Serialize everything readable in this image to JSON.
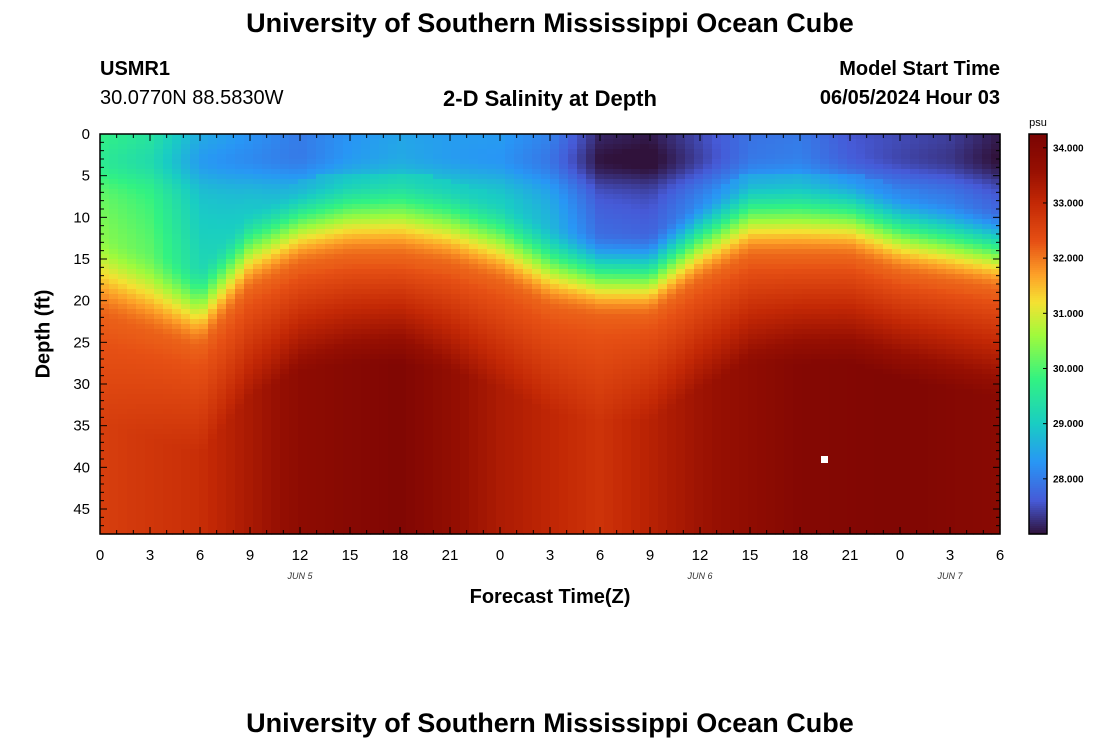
{
  "header": {
    "title": "University of Southern Mississippi Ocean Cube",
    "station": "USMR1",
    "coords": "30.0770N  88.5830W",
    "subtitle": "2-D Salinity at Depth",
    "model_start_label": "Model Start Time",
    "model_start_value": "06/05/2024 Hour 03"
  },
  "footer": {
    "title": "University of Southern Mississippi Ocean Cube"
  },
  "chart_data": {
    "type": "heatmap",
    "title": "2-D Salinity at Depth",
    "xlabel": "Forecast Time(Z)",
    "ylabel": "Depth (ft)",
    "x_tick_labels": [
      "0",
      "3",
      "6",
      "9",
      "12",
      "15",
      "18",
      "21",
      "0",
      "3",
      "6",
      "9",
      "12",
      "15",
      "18",
      "21",
      "0",
      "3",
      "6"
    ],
    "date_labels": [
      {
        "text": "JUN 5",
        "hour": 12
      },
      {
        "text": "JUN 6",
        "hour": 36
      },
      {
        "text": "JUN 7",
        "hour": 51
      }
    ],
    "xlim_hours": [
      0,
      54
    ],
    "y_ticks": [
      0,
      5,
      10,
      15,
      20,
      25,
      30,
      35,
      40,
      45
    ],
    "ylim": [
      0,
      48
    ],
    "colorbar": {
      "unit": "psu",
      "ticks": [
        "34.000",
        "33.000",
        "32.000",
        "31.000",
        "30.000",
        "29.000",
        "28.000"
      ],
      "range": [
        27.0,
        34.25
      ]
    },
    "thermocline_depth_ft": [
      {
        "hour": 0,
        "depth": 17
      },
      {
        "hour": 3,
        "depth": 19
      },
      {
        "hour": 6,
        "depth": 21
      },
      {
        "hour": 9,
        "depth": 14
      },
      {
        "hour": 12,
        "depth": 11
      },
      {
        "hour": 15,
        "depth": 10
      },
      {
        "hour": 18,
        "depth": 10
      },
      {
        "hour": 21,
        "depth": 11
      },
      {
        "hour": 24,
        "depth": 13
      },
      {
        "hour": 27,
        "depth": 16
      },
      {
        "hour": 30,
        "depth": 17
      },
      {
        "hour": 33,
        "depth": 17
      },
      {
        "hour": 36,
        "depth": 13
      },
      {
        "hour": 39,
        "depth": 10
      },
      {
        "hour": 42,
        "depth": 10
      },
      {
        "hour": 45,
        "depth": 10
      },
      {
        "hour": 48,
        "depth": 12
      },
      {
        "hour": 51,
        "depth": 13
      },
      {
        "hour": 54,
        "depth": 14
      }
    ],
    "surface_salinity_psu": [
      {
        "hour": 0,
        "value": 29.8
      },
      {
        "hour": 3,
        "value": 29.5
      },
      {
        "hour": 6,
        "value": 28.6
      },
      {
        "hour": 9,
        "value": 28.3
      },
      {
        "hour": 12,
        "value": 28.0
      },
      {
        "hour": 15,
        "value": 28.3
      },
      {
        "hour": 18,
        "value": 28.5
      },
      {
        "hour": 21,
        "value": 28.4
      },
      {
        "hour": 24,
        "value": 28.4
      },
      {
        "hour": 27,
        "value": 28.1
      },
      {
        "hour": 30,
        "value": 27.2
      },
      {
        "hour": 33,
        "value": 27.1
      },
      {
        "hour": 36,
        "value": 27.5
      },
      {
        "hour": 39,
        "value": 27.9
      },
      {
        "hour": 42,
        "value": 28.0
      },
      {
        "hour": 45,
        "value": 27.6
      },
      {
        "hour": 48,
        "value": 27.5
      },
      {
        "hour": 51,
        "value": 27.4
      },
      {
        "hour": 54,
        "value": 27.1
      }
    ],
    "bottom_salinity_psu": [
      {
        "hour": 0,
        "value": 32.6
      },
      {
        "hour": 6,
        "value": 32.9
      },
      {
        "hour": 12,
        "value": 33.8
      },
      {
        "hour": 18,
        "value": 34.1
      },
      {
        "hour": 24,
        "value": 33.3
      },
      {
        "hour": 30,
        "value": 32.8
      },
      {
        "hour": 36,
        "value": 33.5
      },
      {
        "hour": 42,
        "value": 34.0
      },
      {
        "hour": 48,
        "value": 34.1
      },
      {
        "hour": 54,
        "value": 33.9
      }
    ]
  }
}
